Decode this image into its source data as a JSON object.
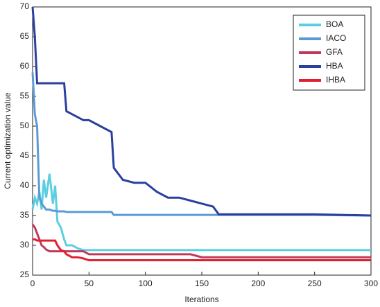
{
  "chart_data": {
    "type": "line",
    "x_label": "Iterations",
    "y_label": "Current optimization value",
    "x": [
      0,
      2,
      4,
      6,
      8,
      10,
      12,
      15,
      18,
      20,
      22,
      25,
      28,
      30,
      35,
      40,
      45,
      50,
      60,
      70,
      72,
      80,
      90,
      100,
      110,
      120,
      130,
      140,
      150,
      160,
      165,
      170,
      200,
      250,
      300
    ],
    "series": [
      {
        "name": "BOA",
        "color": "#5bcfe0",
        "values": [
          36,
          38,
          37,
          39,
          36,
          41,
          38,
          42,
          37,
          40,
          34,
          33,
          31,
          30,
          30,
          29.5,
          29.2,
          29.2,
          29.2,
          29.2,
          29.2,
          29.2,
          29.2,
          29.2,
          29.2,
          29.2,
          29.2,
          29.2,
          29.2,
          29.2,
          29.2,
          29.2,
          29.2,
          29.2,
          29.2
        ]
      },
      {
        "name": "IACO",
        "color": "#5b9bd5",
        "values": [
          59,
          52,
          50,
          38,
          37,
          36.5,
          36,
          36,
          35.8,
          35.8,
          35.7,
          35.7,
          35.7,
          35.6,
          35.6,
          35.6,
          35.6,
          35.6,
          35.6,
          35.6,
          35.1,
          35.1,
          35.1,
          35.1,
          35.1,
          35.1,
          35.1,
          35.1,
          35.1,
          35.1,
          35.1,
          35.1,
          35.1,
          35.1,
          35
        ]
      },
      {
        "name": "GFA",
        "color": "#c0395a",
        "values": [
          33.5,
          33,
          32,
          31,
          30,
          29.7,
          29.3,
          29,
          29,
          29,
          29,
          29,
          29,
          29,
          29,
          29,
          29,
          28.5,
          28.5,
          28.5,
          28.5,
          28.5,
          28.5,
          28.5,
          28.5,
          28.5,
          28.5,
          28.5,
          28,
          28,
          28,
          28,
          28,
          28,
          28
        ]
      },
      {
        "name": "HBA",
        "color": "#2a3f9e",
        "values": [
          70,
          65,
          57.2,
          57.2,
          57.2,
          57.2,
          57.2,
          57.2,
          57.2,
          57.2,
          57.2,
          57.2,
          57.2,
          52.5,
          52,
          51.5,
          51,
          51,
          50,
          49,
          43,
          41,
          40.5,
          40.5,
          39,
          38,
          38,
          37.5,
          37,
          36.5,
          35.2,
          35.2,
          35.2,
          35.2,
          35
        ]
      },
      {
        "name": "IHBA",
        "color": "#e02030",
        "values": [
          31,
          31,
          30.8,
          30.8,
          30.8,
          30.8,
          30.8,
          30.8,
          30.8,
          30.8,
          30,
          29.2,
          29,
          28.5,
          28,
          28,
          27.8,
          27.5,
          27.5,
          27.5,
          27.5,
          27.5,
          27.5,
          27.5,
          27.5,
          27.5,
          27.5,
          27.5,
          27.5,
          27.5,
          27.5,
          27.5,
          27.5,
          27.5,
          27.5
        ]
      }
    ],
    "xlim": [
      0,
      300
    ],
    "xticks": [
      0,
      50,
      100,
      150,
      200,
      250,
      300
    ],
    "ylim": [
      25,
      70
    ],
    "yticks": [
      25,
      30,
      35,
      40,
      45,
      50,
      55,
      60,
      65,
      70
    ],
    "legend": "upper right"
  }
}
